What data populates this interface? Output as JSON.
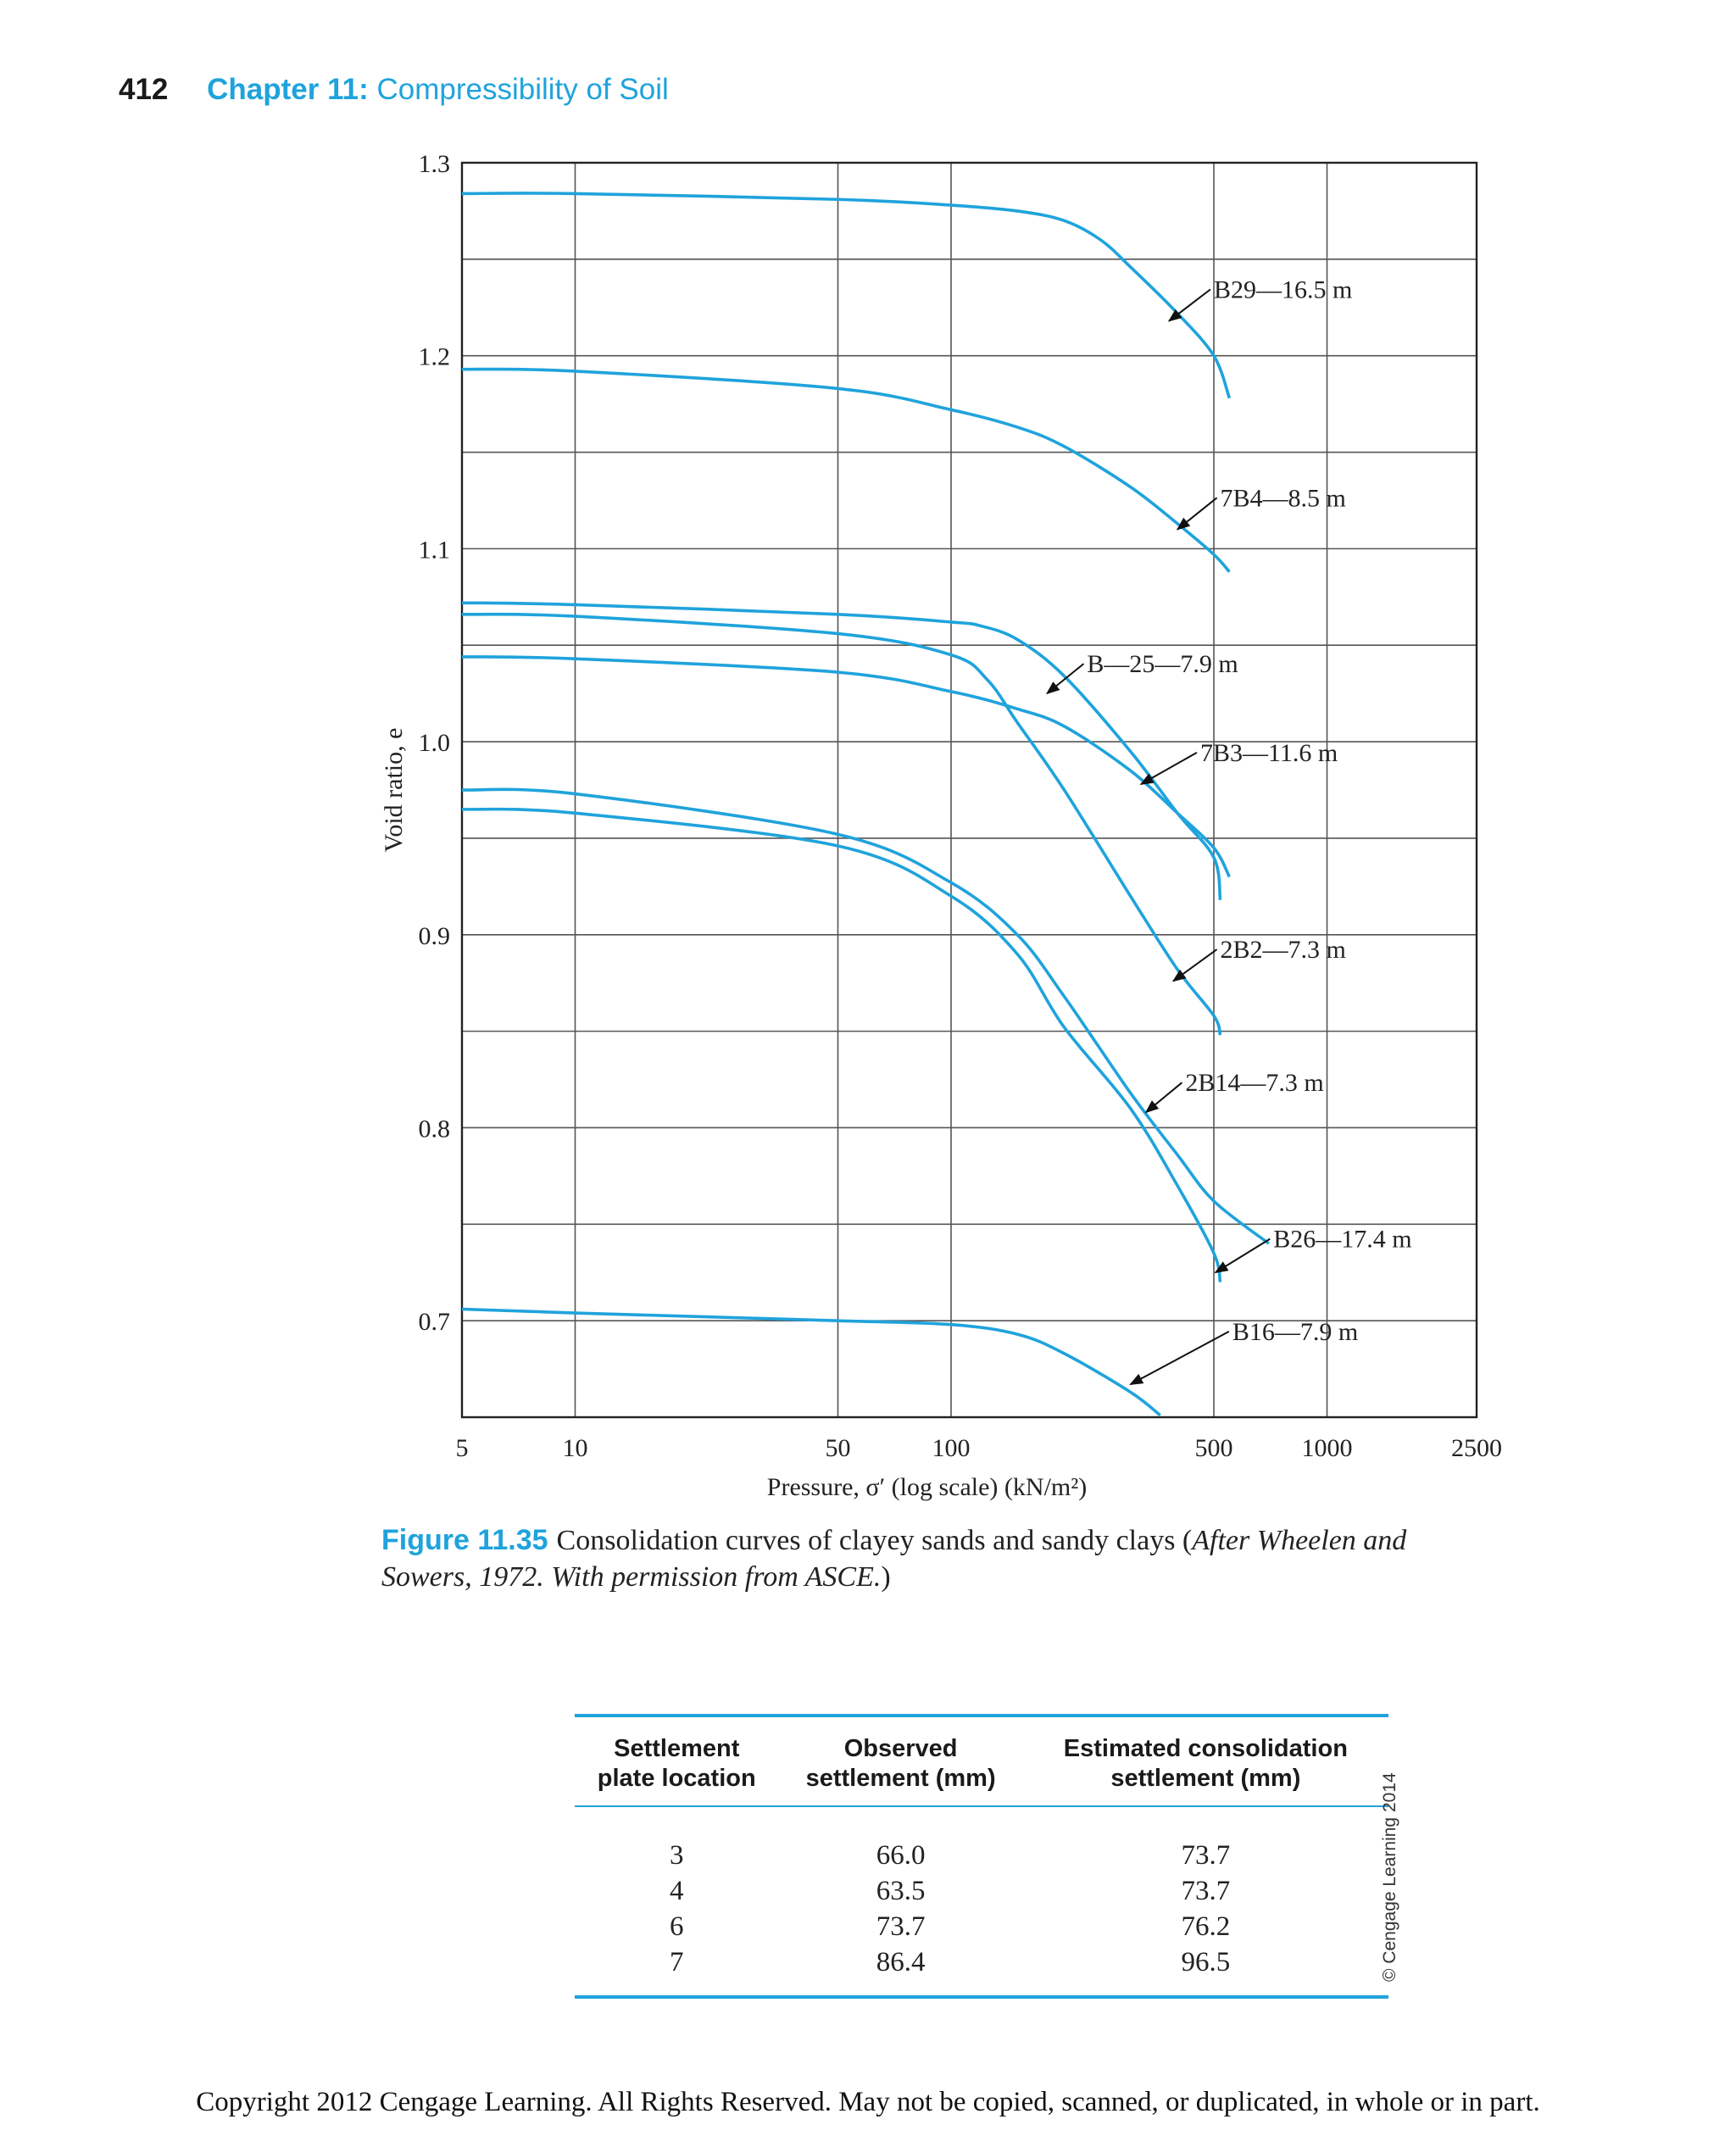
{
  "header": {
    "page_number": "412",
    "chapter_label": "Chapter 11:",
    "chapter_title": "Compressibility of Soil"
  },
  "colors": {
    "curve": "#1fa3dc",
    "grid": "#555555",
    "accent": "#1fa3dc"
  },
  "chart_data": {
    "type": "line",
    "title": "",
    "xlabel": "Pressure, σ′ (log scale) (kN/m²)",
    "ylabel": "Void ratio, e",
    "x_scale": "log",
    "xlim": [
      5,
      2500
    ],
    "ylim": [
      0.65,
      1.3
    ],
    "x_ticks": [
      5,
      10,
      50,
      100,
      500,
      1000,
      2500
    ],
    "y_ticks": [
      0.7,
      0.8,
      0.9,
      1.0,
      1.1,
      1.2,
      1.3
    ],
    "x_gridlines": [
      10,
      50,
      100,
      500,
      1000
    ],
    "y_gridlines": [
      0.7,
      0.75,
      0.8,
      0.85,
      0.9,
      0.95,
      1.0,
      1.05,
      1.1,
      1.15,
      1.2,
      1.25
    ],
    "grid": true,
    "series": [
      {
        "name": "B29—16.5 m",
        "label_at": [
          500,
          1.23
        ],
        "arrow_to": [
          380,
          1.218
        ],
        "x": [
          5,
          10,
          50,
          100,
          150,
          200,
          250,
          300,
          400,
          500,
          550
        ],
        "y": [
          1.284,
          1.284,
          1.281,
          1.278,
          1.275,
          1.27,
          1.26,
          1.246,
          1.222,
          1.2,
          1.178
        ]
      },
      {
        "name": "7B4—8.5 m",
        "label_at": [
          520,
          1.122
        ],
        "arrow_to": [
          400,
          1.11
        ],
        "x": [
          5,
          10,
          50,
          100,
          150,
          200,
          300,
          400,
          500,
          550
        ],
        "y": [
          1.193,
          1.192,
          1.183,
          1.172,
          1.163,
          1.153,
          1.132,
          1.113,
          1.097,
          1.088
        ]
      },
      {
        "name": "B—25—7.9 m",
        "label_at": [
          230,
          1.036
        ],
        "arrow_to": [
          180,
          1.025
        ],
        "x": [
          5,
          10,
          50,
          100,
          120,
          150,
          200,
          300,
          400,
          500,
          520
        ],
        "y": [
          1.072,
          1.071,
          1.066,
          1.062,
          1.06,
          1.053,
          1.034,
          0.995,
          0.963,
          0.94,
          0.918
        ]
      },
      {
        "name": "7B3—11.6 m",
        "label_at": [
          460,
          0.99
        ],
        "arrow_to": [
          320,
          0.978
        ],
        "x": [
          5,
          10,
          50,
          100,
          150,
          200,
          300,
          400,
          500,
          550
        ],
        "y": [
          1.044,
          1.043,
          1.036,
          1.026,
          1.017,
          1.008,
          0.985,
          0.963,
          0.945,
          0.93
        ]
      },
      {
        "name": "2B2—7.3 m",
        "label_at": [
          520,
          0.888
        ],
        "arrow_to": [
          390,
          0.876
        ],
        "x": [
          5,
          10,
          50,
          100,
          125,
          150,
          200,
          300,
          400,
          500,
          520
        ],
        "y": [
          1.066,
          1.065,
          1.056,
          1.045,
          1.032,
          1.01,
          0.975,
          0.92,
          0.882,
          0.858,
          0.848
        ]
      },
      {
        "name": "2B14—7.3 m",
        "label_at": [
          420,
          0.819
        ],
        "arrow_to": [
          330,
          0.808
        ],
        "x": [
          5,
          10,
          50,
          100,
          150,
          200,
          300,
          400,
          500,
          700
        ],
        "y": [
          0.975,
          0.973,
          0.952,
          0.927,
          0.9,
          0.868,
          0.818,
          0.786,
          0.762,
          0.74
        ]
      },
      {
        "name": "B26—17.4 m",
        "label_at": [
          720,
          0.738
        ],
        "arrow_to": [
          505,
          0.725
        ],
        "x": [
          5,
          10,
          50,
          100,
          150,
          200,
          300,
          400,
          500,
          520
        ],
        "y": [
          0.965,
          0.963,
          0.946,
          0.92,
          0.89,
          0.852,
          0.81,
          0.77,
          0.735,
          0.72
        ]
      },
      {
        "name": "B16—7.9 m",
        "label_at": [
          560,
          0.69
        ],
        "arrow_to": [
          300,
          0.667
        ],
        "x": [
          5,
          10,
          50,
          100,
          150,
          200,
          300,
          360
        ],
        "y": [
          0.706,
          0.704,
          0.7,
          0.698,
          0.693,
          0.683,
          0.663,
          0.651
        ]
      }
    ]
  },
  "caption": {
    "label": "Figure 11.35",
    "text_pre": "Consolidation curves of clayey sands and sandy clays (",
    "text_italic": "After Wheelen and Sowers, 1972. With permission from ASCE.",
    "text_post": ")"
  },
  "table": {
    "headers": [
      [
        "Settlement",
        "plate location"
      ],
      [
        "Observed",
        "settlement (mm)"
      ],
      [
        "Estimated consolidation",
        "settlement (mm)"
      ]
    ],
    "rows": [
      [
        "3",
        "66.0",
        "73.7"
      ],
      [
        "4",
        "63.5",
        "73.7"
      ],
      [
        "6",
        "73.7",
        "76.2"
      ],
      [
        "7",
        "86.4",
        "96.5"
      ]
    ]
  },
  "credit": "© Cengage Learning 2014",
  "footer": "Copyright 2012 Cengage Learning. All Rights Reserved. May not be copied, scanned, or duplicated, in whole or in part."
}
